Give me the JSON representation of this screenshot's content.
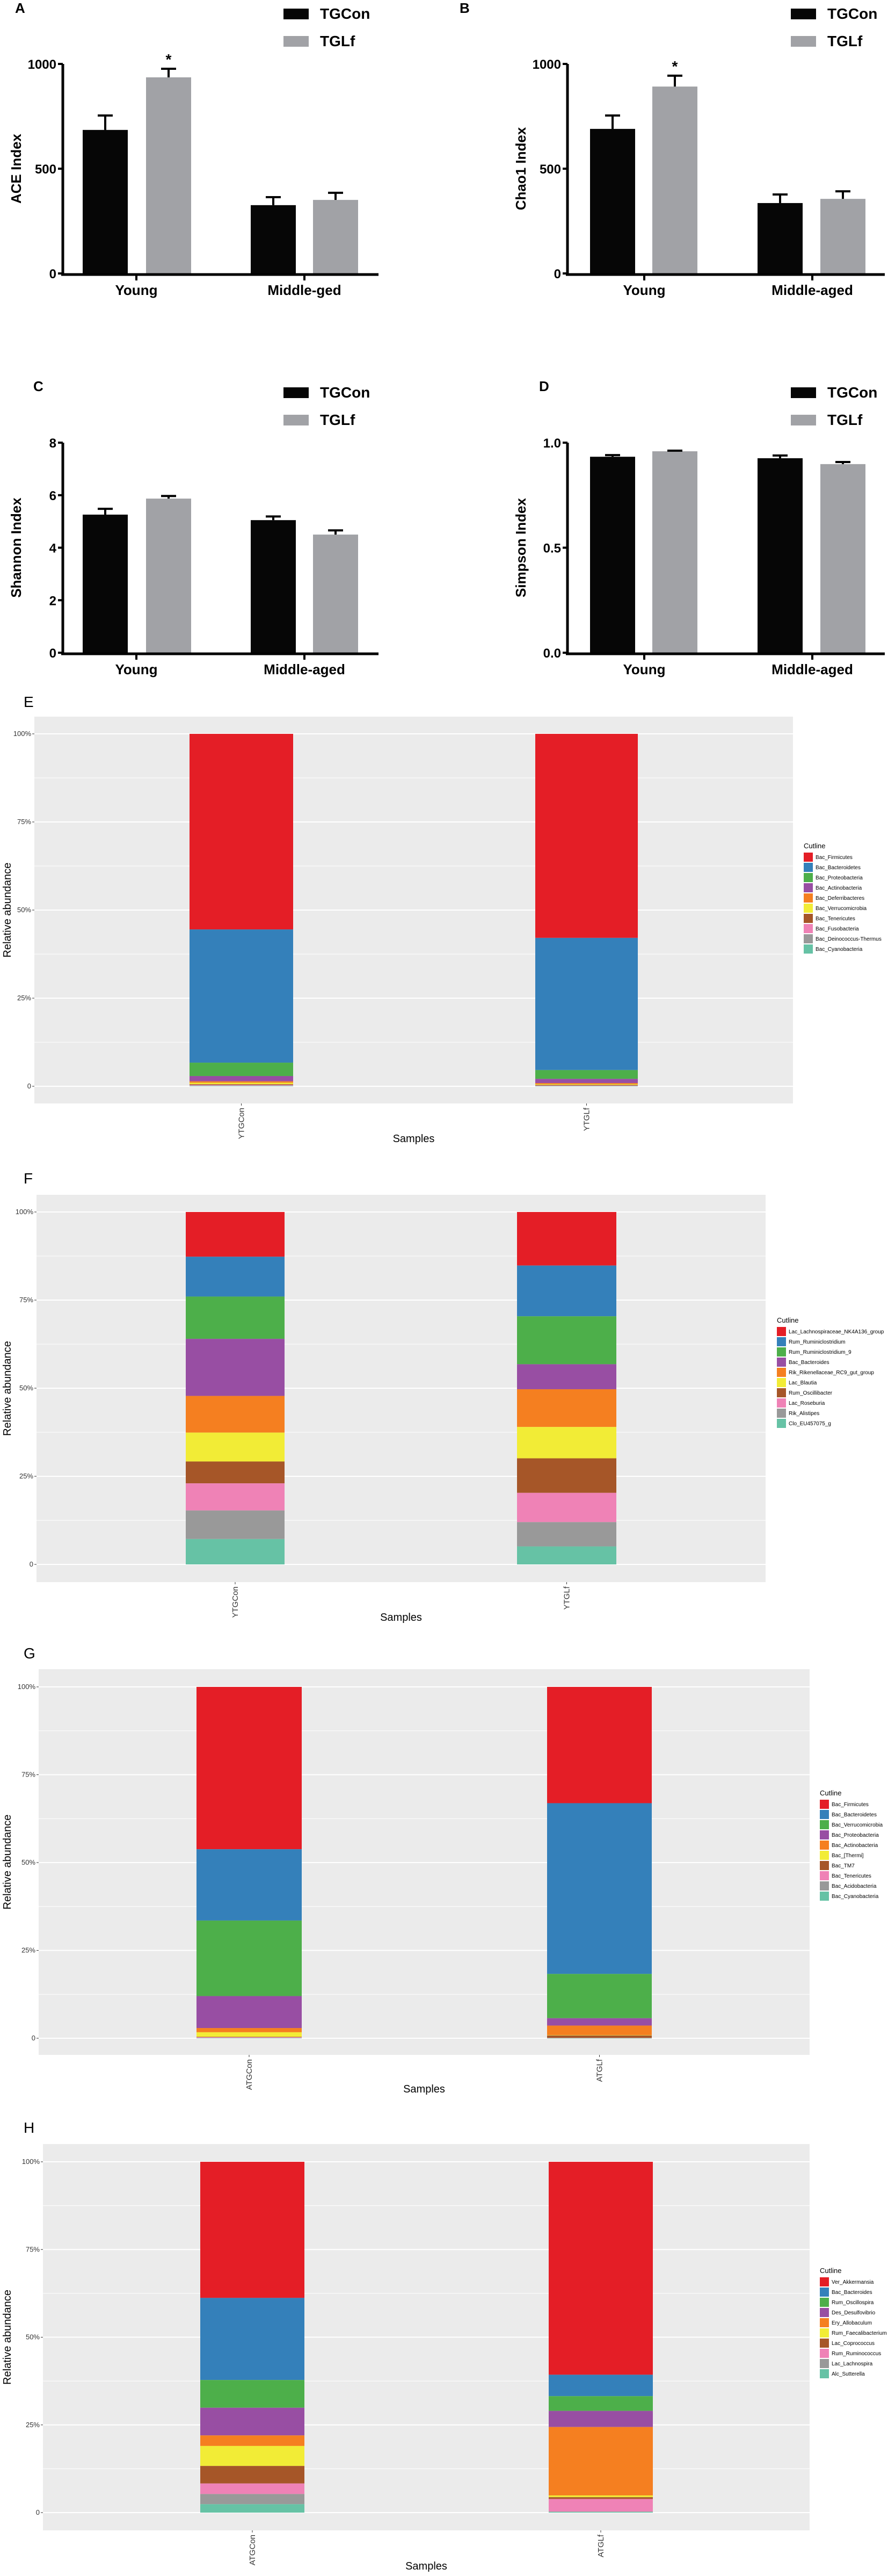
{
  "colors": {
    "control": "#060606",
    "treated": "#a1a2a6",
    "panel_bg": "#ebebeb",
    "grid": "#ffffff",
    "palette": [
      "#e41e26",
      "#3480ba",
      "#4daf4a",
      "#984ea3",
      "#f57f20",
      "#f2ec36",
      "#a65628",
      "#ef82b6",
      "#999999",
      "#66c2a5"
    ]
  },
  "chart_data": [
    {
      "panel": "A",
      "type": "bar",
      "ylabel": "ACE Index",
      "xlabel": "",
      "categories": [
        "Young",
        "Middle-ged"
      ],
      "yticks": [
        "0",
        "500",
        "1000"
      ],
      "ylim": [
        0,
        1000
      ],
      "legend": [
        "TGCon",
        "TGLf"
      ],
      "legend_position": "top-right",
      "series": [
        {
          "name": "TGCon",
          "values": [
            685,
            326
          ],
          "error_upper": [
            754,
            364
          ]
        },
        {
          "name": "TGLf",
          "values": [
            936,
            351
          ],
          "error_upper": [
            977,
            385
          ]
        }
      ],
      "annotations": [
        {
          "text": "*",
          "category": "Young",
          "series": "TGLf"
        }
      ]
    },
    {
      "panel": "B",
      "type": "bar",
      "ylabel": "Chao1 Index",
      "xlabel": "",
      "categories": [
        "Young",
        "Middle-aged"
      ],
      "yticks": [
        "0",
        "500",
        "1000"
      ],
      "ylim": [
        0,
        1000
      ],
      "legend": [
        "TGCon",
        "TGLf"
      ],
      "legend_position": "top-right",
      "series": [
        {
          "name": "TGCon",
          "values": [
            690,
            336
          ],
          "error_upper": [
            754,
            377
          ]
        },
        {
          "name": "TGLf",
          "values": [
            892,
            356
          ],
          "error_upper": [
            944,
            392
          ]
        }
      ],
      "annotations": [
        {
          "text": "*",
          "category": "Young",
          "series": "TGLf"
        }
      ]
    },
    {
      "panel": "C",
      "type": "bar",
      "ylabel": "Shannon Index",
      "xlabel": "",
      "categories": [
        "Young",
        "Middle-aged"
      ],
      "yticks": [
        "0",
        "2",
        "4",
        "6",
        "8"
      ],
      "ylim": [
        0,
        8
      ],
      "legend": [
        "TGCon",
        "TGLf"
      ],
      "legend_position": "top-right",
      "series": [
        {
          "name": "TGCon",
          "values": [
            5.26,
            5.05
          ],
          "error_upper": [
            5.48,
            5.19
          ]
        },
        {
          "name": "TGLf",
          "values": [
            5.87,
            4.5
          ],
          "error_upper": [
            5.97,
            4.66
          ]
        }
      ],
      "annotations": []
    },
    {
      "panel": "D",
      "type": "bar",
      "ylabel": "Simpson Index",
      "xlabel": "",
      "categories": [
        "Young",
        "Middle-aged"
      ],
      "yticks": [
        "0.0",
        "0.5",
        "1.0"
      ],
      "ylim": [
        0,
        1
      ],
      "legend": [
        "TGCon",
        "TGLf"
      ],
      "legend_position": "top-right",
      "series": [
        {
          "name": "TGCon",
          "values": [
            0.933,
            0.926
          ],
          "error_upper": [
            0.941,
            0.939
          ]
        },
        {
          "name": "TGLf",
          "values": [
            0.959,
            0.898
          ],
          "error_upper": [
            0.962,
            0.908
          ]
        }
      ],
      "annotations": []
    },
    {
      "panel": "E",
      "type": "bar",
      "stacked": true,
      "ylabel": "Relative abundance",
      "xlabel": "Samples",
      "yticks": [
        "0",
        "25%",
        "50%",
        "75%",
        "100%"
      ],
      "ylim": [
        0,
        100
      ],
      "legend_title": "Cutline",
      "legend_position": "right",
      "categories": [
        "YTGCon",
        "YTGLf"
      ],
      "series": [
        {
          "name": "Bac_Firmicutes",
          "values": [
            55.5,
            57.9
          ]
        },
        {
          "name": "Bac_Bacteroidetes",
          "values": [
            37.8,
            37.5
          ]
        },
        {
          "name": "Bac_Proteobacteria",
          "values": [
            3.8,
            2.5
          ]
        },
        {
          "name": "Bac_Actinobacteria",
          "values": [
            1.5,
            1.2
          ]
        },
        {
          "name": "Bac_Deferribacteres",
          "values": [
            0.4,
            0.3
          ]
        },
        {
          "name": "Bac_Verrucomicrobia",
          "values": [
            0.4,
            0.2
          ]
        },
        {
          "name": "Bac_Tenericutes",
          "values": [
            0.2,
            0.2
          ]
        },
        {
          "name": "Bac_Fusobacteria",
          "values": [
            0.2,
            0.1
          ]
        },
        {
          "name": "Bac_Deinococcus-Thermus",
          "values": [
            0.1,
            0.05
          ]
        },
        {
          "name": "Bac_Cyanobacteria",
          "values": [
            0.1,
            0.05
          ]
        }
      ]
    },
    {
      "panel": "F",
      "type": "bar",
      "stacked": true,
      "ylabel": "Relative abundance",
      "xlabel": "Samples",
      "yticks": [
        "0",
        "25%",
        "50%",
        "75%",
        "100%"
      ],
      "ylim": [
        0,
        100
      ],
      "legend_title": "Cutline",
      "legend_position": "right",
      "categories": [
        "YTGCon",
        "YTGLf"
      ],
      "series": [
        {
          "name": "Lac_Lachnospiraceae_NK4A136_group",
          "values": [
            12.7,
            15.2
          ]
        },
        {
          "name": "Rum_Ruminiclostridium",
          "values": [
            11.3,
            14.4
          ]
        },
        {
          "name": "Rum_Ruminiclostridium_9",
          "values": [
            12.0,
            13.6
          ]
        },
        {
          "name": "Bac_Bacteroides",
          "values": [
            16.2,
            7.1
          ]
        },
        {
          "name": "Rik_Rikenellaceae_RC9_gut_group",
          "values": [
            10.4,
            10.7
          ]
        },
        {
          "name": "Lac_Blautia",
          "values": [
            8.2,
            8.9
          ]
        },
        {
          "name": "Rum_Oscillibacter",
          "values": [
            6.2,
            9.8
          ]
        },
        {
          "name": "Lac_Roseburia",
          "values": [
            7.7,
            8.3
          ]
        },
        {
          "name": "Rik_Alistipes",
          "values": [
            8.1,
            6.9
          ]
        },
        {
          "name": "Clo_EU457075_g",
          "values": [
            7.2,
            5.1
          ]
        }
      ]
    },
    {
      "panel": "G",
      "type": "bar",
      "stacked": true,
      "ylabel": "Relative abundance",
      "xlabel": "Samples",
      "yticks": [
        "0",
        "25%",
        "50%",
        "75%",
        "100%"
      ],
      "ylim": [
        0,
        100
      ],
      "legend_title": "Cutline",
      "legend_position": "right",
      "categories": [
        "ATGCon",
        "ATGLf"
      ],
      "series": [
        {
          "name": "Bac_Firmicutes",
          "values": [
            46.2,
            33.1
          ]
        },
        {
          "name": "Bac_Bacteroidetes",
          "values": [
            20.3,
            48.6
          ]
        },
        {
          "name": "Bac_Verrucomicrobia",
          "values": [
            21.5,
            12.6
          ]
        },
        {
          "name": "Bac_Proteobacteria",
          "values": [
            9.1,
            2.1
          ]
        },
        {
          "name": "Bac_Actinobacteria",
          "values": [
            1.2,
            2.7
          ]
        },
        {
          "name": "Bac_[Thermi]",
          "values": [
            1.3,
            0.1
          ]
        },
        {
          "name": "Bac_TM7",
          "values": [
            0.1,
            0.7
          ]
        },
        {
          "name": "Bac_Tenericutes",
          "values": [
            0.2,
            0.05
          ]
        },
        {
          "name": "Bac_Acidobacteria",
          "values": [
            0.05,
            0.03
          ]
        },
        {
          "name": "Bac_Cyanobacteria",
          "values": [
            0.05,
            0.02
          ]
        }
      ]
    },
    {
      "panel": "H",
      "type": "bar",
      "stacked": true,
      "ylabel": "Relative abundance",
      "xlabel": "Samples",
      "yticks": [
        "0",
        "25%",
        "50%",
        "75%",
        "100%"
      ],
      "ylim": [
        0,
        100
      ],
      "legend_title": "Cutline",
      "legend_position": "right",
      "categories": [
        "ATGCon",
        "ATGLf"
      ],
      "series": [
        {
          "name": "Ver_Akkermansia",
          "values": [
            38.8,
            60.7
          ]
        },
        {
          "name": "Bac_Bacteroides",
          "values": [
            23.4,
            6.1
          ]
        },
        {
          "name": "Rum_Oscillospira",
          "values": [
            7.9,
            4.2
          ]
        },
        {
          "name": "Des_Desulfovibrio",
          "values": [
            7.9,
            4.6
          ]
        },
        {
          "name": "Ery_Allobaculum",
          "values": [
            3.0,
            19.5
          ]
        },
        {
          "name": "Rum_Faecalibacterium",
          "values": [
            5.7,
            0.5
          ]
        },
        {
          "name": "Lac_Coprococcus",
          "values": [
            5.0,
            0.5
          ]
        },
        {
          "name": "Rum_Ruminococcus",
          "values": [
            3.0,
            3.6
          ]
        },
        {
          "name": "Lac_Lachnospira",
          "values": [
            2.9,
            0.1
          ]
        },
        {
          "name": "Alc_Sutterella",
          "values": [
            2.4,
            0.2
          ]
        }
      ]
    }
  ]
}
